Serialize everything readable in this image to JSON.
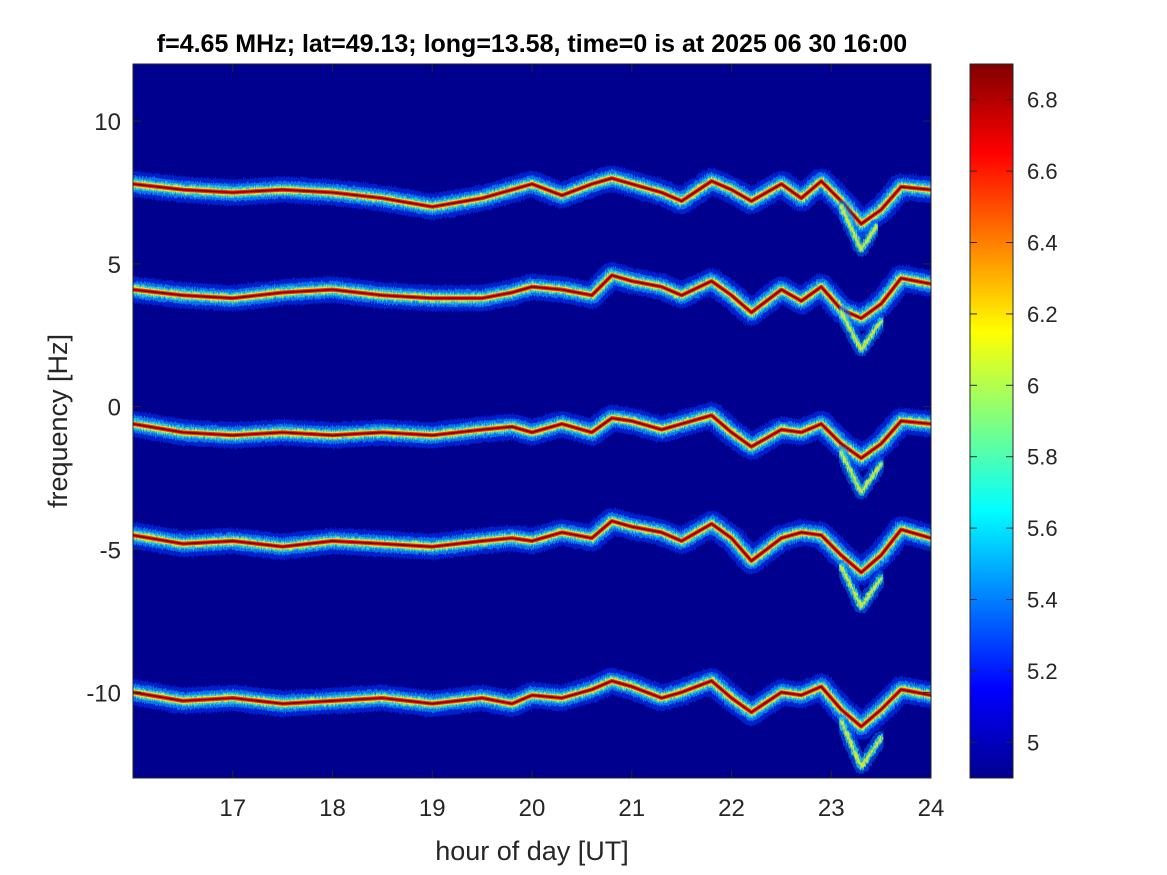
{
  "chart_data": {
    "type": "heatmap",
    "title": "f=4.65 MHz;  lat=49.13; long=13.58, time=0 is at 2025 06 30 16:00",
    "xlabel": "hour of day [UT]",
    "ylabel": "frequency [Hz]",
    "xlim": [
      16.0,
      24.0
    ],
    "ylim": [
      -13.0,
      12.0
    ],
    "x_ticks": [
      17,
      18,
      19,
      20,
      21,
      22,
      23,
      24
    ],
    "x_tick_labels": [
      "17",
      "18",
      "19",
      "20",
      "21",
      "22",
      "23",
      "24"
    ],
    "y_ticks": [
      10,
      5,
      0,
      -5,
      -10
    ],
    "y_tick_labels": [
      "10",
      "5",
      "0",
      "-5",
      "-10"
    ],
    "colorbar": {
      "colormap": "jet",
      "clim": [
        4.9,
        6.9
      ],
      "ticks": [
        6.8,
        6.6,
        6.4,
        6.2,
        6.0,
        5.8,
        5.6,
        5.4,
        5.2,
        5.0
      ],
      "tick_labels": [
        "6.8",
        "6.6",
        "6.4",
        "6.2",
        "6",
        "5.8",
        "5.6",
        "5.4",
        "5.2",
        "5"
      ]
    },
    "background_value": 4.9,
    "traces": [
      {
        "center_hz": 7.6,
        "points": [
          [
            16.0,
            7.8
          ],
          [
            16.5,
            7.6
          ],
          [
            17.0,
            7.5
          ],
          [
            17.5,
            7.6
          ],
          [
            18.0,
            7.5
          ],
          [
            18.5,
            7.3
          ],
          [
            19.0,
            7.0
          ],
          [
            19.5,
            7.3
          ],
          [
            19.8,
            7.6
          ],
          [
            20.0,
            7.8
          ],
          [
            20.3,
            7.4
          ],
          [
            20.6,
            7.8
          ],
          [
            20.8,
            8.0
          ],
          [
            21.0,
            7.8
          ],
          [
            21.3,
            7.5
          ],
          [
            21.5,
            7.2
          ],
          [
            21.8,
            7.9
          ],
          [
            22.0,
            7.6
          ],
          [
            22.2,
            7.2
          ],
          [
            22.5,
            7.8
          ],
          [
            22.7,
            7.3
          ],
          [
            22.9,
            7.9
          ],
          [
            23.1,
            7.2
          ],
          [
            23.3,
            6.4
          ],
          [
            23.5,
            6.9
          ],
          [
            23.7,
            7.7
          ],
          [
            24.0,
            7.6
          ]
        ],
        "branch": [
          [
            23.1,
            7.0
          ],
          [
            23.3,
            5.5
          ],
          [
            23.45,
            6.3
          ]
        ]
      },
      {
        "center_hz": 4.0,
        "points": [
          [
            16.0,
            4.1
          ],
          [
            16.5,
            3.9
          ],
          [
            17.0,
            3.8
          ],
          [
            17.5,
            4.0
          ],
          [
            18.0,
            4.1
          ],
          [
            18.5,
            3.9
          ],
          [
            19.0,
            3.8
          ],
          [
            19.5,
            3.8
          ],
          [
            19.8,
            4.0
          ],
          [
            20.0,
            4.2
          ],
          [
            20.3,
            4.1
          ],
          [
            20.6,
            3.9
          ],
          [
            20.8,
            4.6
          ],
          [
            21.0,
            4.4
          ],
          [
            21.3,
            4.2
          ],
          [
            21.5,
            3.9
          ],
          [
            21.8,
            4.4
          ],
          [
            22.0,
            3.9
          ],
          [
            22.2,
            3.3
          ],
          [
            22.5,
            4.1
          ],
          [
            22.7,
            3.7
          ],
          [
            22.9,
            4.2
          ],
          [
            23.1,
            3.4
          ],
          [
            23.3,
            3.1
          ],
          [
            23.5,
            3.6
          ],
          [
            23.7,
            4.5
          ],
          [
            24.0,
            4.3
          ]
        ],
        "branch": [
          [
            23.1,
            3.3
          ],
          [
            23.3,
            2.0
          ],
          [
            23.5,
            3.0
          ]
        ]
      },
      {
        "center_hz": -0.8,
        "points": [
          [
            16.0,
            -0.6
          ],
          [
            16.5,
            -0.9
          ],
          [
            17.0,
            -1.0
          ],
          [
            17.5,
            -0.9
          ],
          [
            18.0,
            -1.0
          ],
          [
            18.5,
            -0.9
          ],
          [
            19.0,
            -1.0
          ],
          [
            19.5,
            -0.8
          ],
          [
            19.8,
            -0.7
          ],
          [
            20.0,
            -0.9
          ],
          [
            20.3,
            -0.6
          ],
          [
            20.6,
            -0.9
          ],
          [
            20.8,
            -0.4
          ],
          [
            21.0,
            -0.5
          ],
          [
            21.3,
            -0.8
          ],
          [
            21.5,
            -0.6
          ],
          [
            21.8,
            -0.3
          ],
          [
            22.0,
            -0.9
          ],
          [
            22.2,
            -1.4
          ],
          [
            22.5,
            -0.8
          ],
          [
            22.7,
            -0.9
          ],
          [
            22.9,
            -0.6
          ],
          [
            23.1,
            -1.3
          ],
          [
            23.3,
            -1.8
          ],
          [
            23.5,
            -1.3
          ],
          [
            23.7,
            -0.5
          ],
          [
            24.0,
            -0.6
          ]
        ],
        "branch": [
          [
            23.1,
            -1.6
          ],
          [
            23.3,
            -3.0
          ],
          [
            23.5,
            -2.0
          ]
        ]
      },
      {
        "center_hz": -4.6,
        "points": [
          [
            16.0,
            -4.5
          ],
          [
            16.5,
            -4.8
          ],
          [
            17.0,
            -4.7
          ],
          [
            17.5,
            -4.9
          ],
          [
            18.0,
            -4.7
          ],
          [
            18.5,
            -4.8
          ],
          [
            19.0,
            -4.9
          ],
          [
            19.5,
            -4.7
          ],
          [
            19.8,
            -4.6
          ],
          [
            20.0,
            -4.7
          ],
          [
            20.3,
            -4.4
          ],
          [
            20.6,
            -4.6
          ],
          [
            20.8,
            -4.0
          ],
          [
            21.0,
            -4.2
          ],
          [
            21.3,
            -4.4
          ],
          [
            21.5,
            -4.7
          ],
          [
            21.8,
            -4.1
          ],
          [
            22.0,
            -4.6
          ],
          [
            22.2,
            -5.4
          ],
          [
            22.5,
            -4.6
          ],
          [
            22.7,
            -4.4
          ],
          [
            22.9,
            -4.5
          ],
          [
            23.1,
            -5.2
          ],
          [
            23.3,
            -5.8
          ],
          [
            23.5,
            -5.2
          ],
          [
            23.7,
            -4.3
          ],
          [
            24.0,
            -4.6
          ]
        ],
        "branch": [
          [
            23.1,
            -5.6
          ],
          [
            23.3,
            -7.0
          ],
          [
            23.5,
            -6.0
          ]
        ]
      },
      {
        "center_hz": -10.0,
        "points": [
          [
            16.0,
            -10.0
          ],
          [
            16.5,
            -10.3
          ],
          [
            17.0,
            -10.2
          ],
          [
            17.5,
            -10.4
          ],
          [
            18.0,
            -10.3
          ],
          [
            18.5,
            -10.2
          ],
          [
            19.0,
            -10.4
          ],
          [
            19.5,
            -10.2
          ],
          [
            19.8,
            -10.4
          ],
          [
            20.0,
            -10.1
          ],
          [
            20.3,
            -10.2
          ],
          [
            20.6,
            -9.9
          ],
          [
            20.8,
            -9.6
          ],
          [
            21.0,
            -9.8
          ],
          [
            21.3,
            -10.2
          ],
          [
            21.5,
            -10.0
          ],
          [
            21.8,
            -9.6
          ],
          [
            22.0,
            -10.2
          ],
          [
            22.2,
            -10.7
          ],
          [
            22.5,
            -10.0
          ],
          [
            22.7,
            -10.1
          ],
          [
            22.9,
            -9.8
          ],
          [
            23.1,
            -10.6
          ],
          [
            23.3,
            -11.2
          ],
          [
            23.5,
            -10.6
          ],
          [
            23.7,
            -9.9
          ],
          [
            24.0,
            -10.1
          ]
        ],
        "branch": [
          [
            23.1,
            -11.0
          ],
          [
            23.3,
            -12.6
          ],
          [
            23.5,
            -11.6
          ]
        ]
      }
    ]
  }
}
